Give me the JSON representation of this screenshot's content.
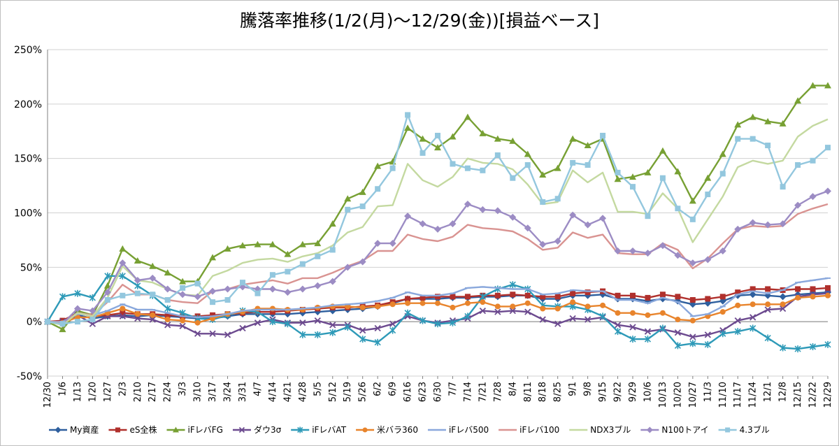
{
  "chart_data": {
    "type": "line",
    "title": "騰落率推移(1/2(月)～12/29(金))[損益ベース]",
    "ylim": [
      -50,
      250
    ],
    "ytick_step": 50,
    "y_tick_labels": [
      "-50%",
      "0%",
      "50%",
      "100%",
      "150%",
      "200%",
      "250%"
    ],
    "grid": true,
    "legend_position": "bottom",
    "x": [
      "12/30",
      "1/6",
      "1/13",
      "1/20",
      "1/27",
      "2/3",
      "2/10",
      "2/17",
      "2/24",
      "3/3",
      "3/10",
      "3/17",
      "3/24",
      "3/31",
      "4/7",
      "4/14",
      "4/21",
      "4/28",
      "5/5",
      "5/12",
      "5/19",
      "5/26",
      "6/2",
      "6/9",
      "6/16",
      "6/23",
      "6/30",
      "7/7",
      "7/14",
      "7/21",
      "7/28",
      "8/4",
      "8/11",
      "8/18",
      "8/25",
      "9/1",
      "9/8",
      "9/15",
      "9/22",
      "9/29",
      "10/6",
      "10/13",
      "10/20",
      "10/27",
      "11/3",
      "11/10",
      "11/17",
      "11/24",
      "12/1",
      "12/8",
      "12/15",
      "12/22",
      "12/29"
    ],
    "series": [
      {
        "name": "My資産",
        "color": "#2e5f9e",
        "marker": "diamond",
        "values": [
          0,
          0,
          6,
          3,
          5,
          6,
          5,
          6,
          5,
          4,
          3,
          3,
          5,
          7,
          7,
          7,
          7,
          8,
          9,
          10,
          11,
          12,
          14,
          17,
          21,
          21,
          21,
          22,
          22,
          23,
          23,
          24,
          24,
          21,
          21,
          24,
          24,
          25,
          21,
          21,
          19,
          21,
          19,
          16,
          17,
          19,
          24,
          25,
          24,
          23,
          25,
          26,
          27
        ]
      },
      {
        "name": "eS全株",
        "color": "#b0302c",
        "marker": "square",
        "values": [
          0,
          1,
          8,
          5,
          6,
          8,
          7,
          7,
          6,
          5,
          5,
          6,
          7,
          8,
          9,
          9,
          10,
          11,
          12,
          13,
          13,
          14,
          15,
          18,
          21,
          22,
          23,
          23,
          23,
          24,
          24,
          25,
          24,
          23,
          23,
          26,
          27,
          28,
          24,
          24,
          22,
          25,
          23,
          20,
          21,
          23,
          27,
          30,
          30,
          29,
          30,
          30,
          31
        ]
      },
      {
        "name": "iFレバFG",
        "color": "#77a033",
        "marker": "triangle",
        "values": [
          0,
          -7,
          10,
          6,
          33,
          67,
          56,
          51,
          45,
          37,
          37,
          59,
          67,
          70,
          71,
          71,
          62,
          71,
          72,
          90,
          113,
          119,
          143,
          147,
          178,
          168,
          160,
          170,
          188,
          173,
          168,
          166,
          154,
          135,
          141,
          168,
          162,
          168,
          131,
          133,
          137,
          157,
          138,
          111,
          132,
          154,
          181,
          188,
          184,
          182,
          203,
          217,
          217
        ]
      },
      {
        "name": "ダウ3σ",
        "color": "#6c4a8f",
        "marker": "x",
        "values": [
          0,
          0,
          6,
          -2,
          5,
          5,
          3,
          2,
          -3,
          -4,
          -11,
          -11,
          -12,
          -6,
          -1,
          2,
          -1,
          -1,
          1,
          -3,
          -3,
          -8,
          -6,
          -2,
          5,
          1,
          -1,
          1,
          3,
          10,
          9,
          10,
          9,
          2,
          -2,
          3,
          2,
          4,
          -3,
          -5,
          -9,
          -7,
          -10,
          -14,
          -12,
          -8,
          1,
          4,
          11,
          12,
          23,
          25,
          26
        ]
      },
      {
        "name": "iFレバAT",
        "color": "#2e9ab8",
        "marker": "asterisk",
        "values": [
          0,
          23,
          26,
          22,
          42,
          42,
          33,
          24,
          12,
          8,
          3,
          2,
          6,
          10,
          9,
          0,
          -2,
          -12,
          -12,
          -10,
          -5,
          -16,
          -19,
          -8,
          8,
          1,
          -2,
          -1,
          5,
          23,
          30,
          34,
          30,
          15,
          14,
          14,
          11,
          5,
          -9,
          -16,
          -16,
          -6,
          -22,
          -20,
          -21,
          -11,
          -9,
          -6,
          -15,
          -24,
          -25,
          -23,
          -21
        ]
      },
      {
        "name": "米バラ360",
        "color": "#e8842c",
        "marker": "circle",
        "values": [
          0,
          -1,
          4,
          4,
          8,
          12,
          7,
          6,
          2,
          1,
          -1,
          3,
          7,
          9,
          12,
          12,
          11,
          11,
          13,
          14,
          14,
          13,
          14,
          16,
          17,
          17,
          17,
          13,
          17,
          18,
          14,
          14,
          17,
          12,
          12,
          18,
          14,
          15,
          8,
          8,
          6,
          8,
          2,
          1,
          5,
          9,
          15,
          16,
          16,
          16,
          22,
          23,
          24
        ]
      },
      {
        "name": "iFレバ500",
        "color": "#8aa8dc",
        "marker": "dash",
        "values": [
          0,
          0,
          7,
          6,
          10,
          16,
          11,
          11,
          8,
          5,
          4,
          5,
          7,
          10,
          11,
          11,
          11,
          12,
          13,
          15,
          16,
          17,
          19,
          22,
          27,
          24,
          24,
          26,
          31,
          32,
          31,
          30,
          30,
          25,
          26,
          29,
          28,
          28,
          20,
          20,
          17,
          22,
          18,
          5,
          7,
          14,
          25,
          28,
          26,
          29,
          36,
          38,
          40
        ]
      },
      {
        "name": "iFレバ100",
        "color": "#d99391",
        "marker": "none",
        "values": [
          0,
          -1,
          8,
          6,
          18,
          34,
          25,
          25,
          20,
          18,
          17,
          28,
          30,
          34,
          36,
          38,
          35,
          40,
          40,
          45,
          51,
          56,
          65,
          65,
          80,
          76,
          74,
          78,
          89,
          86,
          85,
          83,
          76,
          66,
          68,
          82,
          77,
          80,
          63,
          62,
          62,
          72,
          66,
          49,
          58,
          72,
          85,
          88,
          87,
          88,
          99,
          104,
          108
        ]
      },
      {
        "name": "NDX3ブル",
        "color": "#c4d9a0",
        "marker": "none",
        "values": [
          0,
          -3,
          8,
          5,
          22,
          51,
          38,
          36,
          30,
          25,
          24,
          42,
          47,
          54,
          57,
          58,
          55,
          60,
          63,
          70,
          82,
          87,
          106,
          107,
          145,
          130,
          124,
          133,
          150,
          146,
          145,
          140,
          126,
          108,
          110,
          139,
          128,
          137,
          101,
          101,
          99,
          118,
          104,
          73,
          94,
          115,
          142,
          148,
          145,
          148,
          170,
          180,
          186
        ]
      },
      {
        "name": "N100トアイ",
        "color": "#9c8cc4",
        "marker": "diamond",
        "values": [
          0,
          -2,
          12,
          10,
          27,
          54,
          38,
          40,
          30,
          25,
          23,
          28,
          30,
          32,
          30,
          30,
          27,
          30,
          33,
          37,
          50,
          55,
          72,
          72,
          97,
          90,
          85,
          90,
          108,
          103,
          102,
          96,
          86,
          71,
          74,
          98,
          89,
          95,
          65,
          65,
          63,
          70,
          61,
          54,
          57,
          65,
          85,
          91,
          89,
          90,
          107,
          115,
          120
        ]
      },
      {
        "name": "4.3ブル",
        "color": "#93c7de",
        "marker": "square",
        "values": [
          0,
          -2,
          0,
          2,
          20,
          24,
          26,
          25,
          20,
          31,
          35,
          18,
          20,
          36,
          26,
          43,
          46,
          53,
          60,
          66,
          103,
          106,
          122,
          141,
          190,
          155,
          171,
          145,
          141,
          139,
          153,
          132,
          144,
          110,
          113,
          146,
          144,
          171,
          137,
          124,
          97,
          132,
          104,
          94,
          117,
          136,
          168,
          168,
          162,
          124,
          144,
          148,
          160
        ]
      }
    ]
  }
}
